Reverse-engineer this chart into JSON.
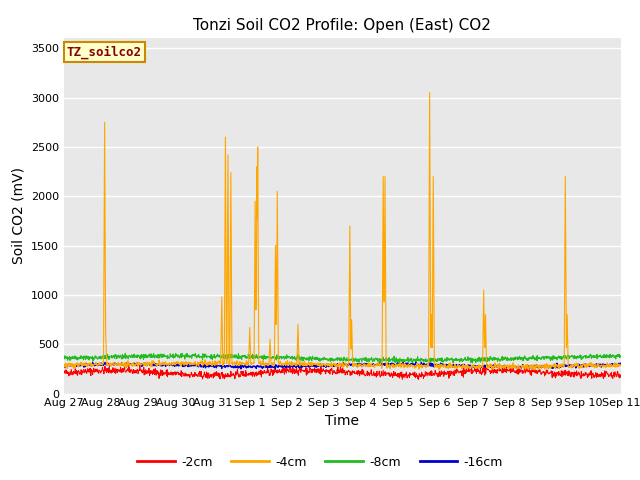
{
  "title": "Tonzi Soil CO2 Profile: Open (East) CO2",
  "ylabel": "Soil CO2 (mV)",
  "xlabel": "Time",
  "ylim": [
    0,
    3600
  ],
  "yticks": [
    0,
    500,
    1000,
    1500,
    2000,
    2500,
    3000,
    3500
  ],
  "xlim": [
    0,
    15
  ],
  "bg_color": "#e8e8e8",
  "legend_label": "TZ_soilco2",
  "series_labels": [
    "-2cm",
    "-4cm",
    "-8cm",
    "-16cm"
  ],
  "series_colors": [
    "#ff0000",
    "#ffa500",
    "#22bb22",
    "#0000cc"
  ],
  "tick_labels": [
    "Aug 27",
    "Aug 28",
    "Aug 29",
    "Aug 30",
    "Aug 31",
    "Sep 1",
    "Sep 2",
    "Sep 3",
    "Sep 4",
    "Sep 5",
    "Sep 6",
    "Sep 7",
    "Sep 8",
    "Sep 9",
    "Sep 10",
    "Sep 11"
  ],
  "title_fontsize": 11,
  "axis_fontsize": 10,
  "tick_fontsize": 8
}
